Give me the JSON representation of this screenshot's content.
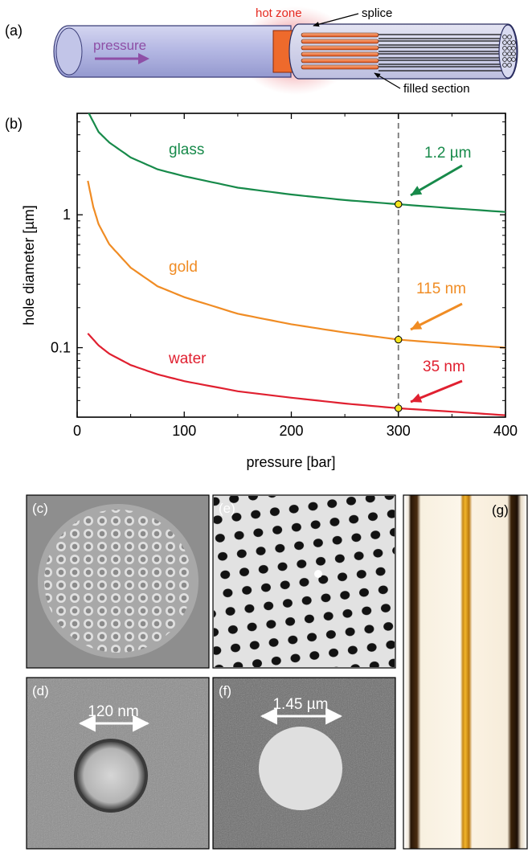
{
  "panels": {
    "a": "(a)",
    "b": "(b)",
    "c": "(c)",
    "d": "(d)",
    "e": "(e)",
    "f": "(f)",
    "g": "(g)"
  },
  "schematic": {
    "pressure": "pressure",
    "hot_zone": "hot zone",
    "splice": "splice",
    "filled_section": "filled section"
  },
  "colors": {
    "glass": "#178a4a",
    "gold": "#f08c24",
    "water": "#e02030",
    "pressure_arrow": "#8e4fa6",
    "hot_zone": "#e5281f",
    "marker": "#f5e61e"
  },
  "scale_bars": {
    "d": "120 nm",
    "f": "1.45 µm"
  },
  "chart_data": {
    "type": "line",
    "xlabel": "pressure [bar]",
    "ylabel": "hole diameter [µm]",
    "xlim": [
      0,
      400
    ],
    "ylim": [
      0.03,
      5.8
    ],
    "yscale": "log",
    "xticks": [
      0,
      100,
      200,
      300,
      400
    ],
    "yticks": [
      {
        "value": 0.1,
        "label": "0.1"
      },
      {
        "value": 1,
        "label": "1"
      }
    ],
    "grid": false,
    "reference_line": {
      "x": 300,
      "style": "dashed"
    },
    "series": [
      {
        "name": "glass",
        "color": "#178a4a",
        "x": [
          10,
          20,
          30,
          50,
          75,
          100,
          150,
          200,
          250,
          300,
          350,
          400
        ],
        "y": [
          6.0,
          4.2,
          3.5,
          2.7,
          2.2,
          1.95,
          1.6,
          1.42,
          1.29,
          1.2,
          1.12,
          1.05
        ]
      },
      {
        "name": "gold",
        "color": "#f08c24",
        "x": [
          10,
          15,
          20,
          30,
          50,
          75,
          100,
          150,
          200,
          250,
          300,
          350,
          400
        ],
        "y": [
          1.8,
          1.15,
          0.85,
          0.6,
          0.4,
          0.29,
          0.24,
          0.18,
          0.15,
          0.13,
          0.115,
          0.107,
          0.1
        ]
      },
      {
        "name": "water",
        "color": "#e02030",
        "x": [
          10,
          20,
          30,
          50,
          75,
          100,
          150,
          200,
          250,
          300,
          350,
          400
        ],
        "y": [
          0.128,
          0.104,
          0.09,
          0.074,
          0.063,
          0.056,
          0.047,
          0.042,
          0.038,
          0.035,
          0.033,
          0.031
        ]
      }
    ],
    "markers": [
      {
        "series": "glass",
        "x": 300,
        "y": 1.2
      },
      {
        "series": "gold",
        "x": 300,
        "y": 0.115
      },
      {
        "series": "water",
        "x": 300,
        "y": 0.035
      }
    ],
    "annotations": [
      {
        "series": "glass",
        "text": "1.2 µm"
      },
      {
        "series": "gold",
        "text": "115 nm"
      },
      {
        "series": "water",
        "text": "35 nm"
      }
    ]
  }
}
